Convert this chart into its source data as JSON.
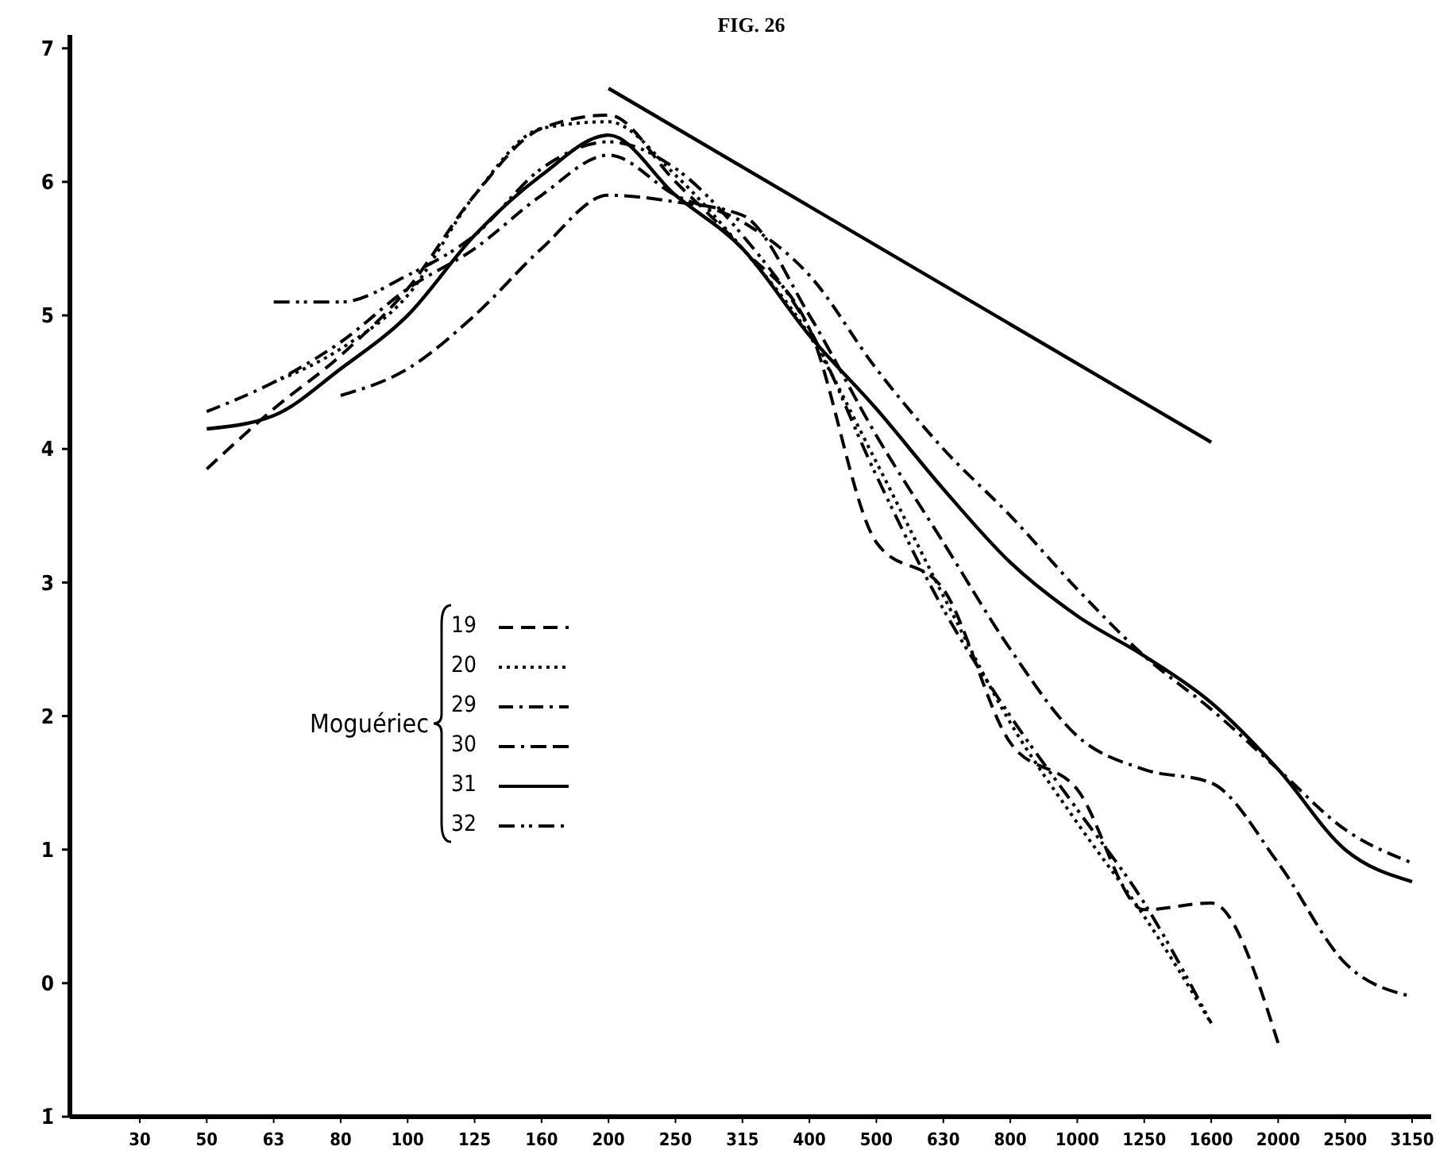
{
  "chart_data": {
    "type": "line",
    "title": "FIG. 26",
    "legend_title": "Moguériec",
    "legend": "left",
    "grid": false,
    "categories": [
      "30",
      "50",
      "63",
      "80",
      "100",
      "125",
      "160",
      "200",
      "250",
      "315",
      "400",
      "500",
      "630",
      "800",
      "1000",
      "1250",
      "1600",
      "2000",
      "2500",
      "3150"
    ],
    "ylim": [
      -1,
      7.1
    ],
    "yticks": [
      {
        "value": -1,
        "label": "1̄"
      },
      0,
      1,
      2,
      3,
      4,
      5,
      6,
      7
    ],
    "series": [
      {
        "name": "19",
        "color": "#000000",
        "line_style": "dashed",
        "values": [
          null,
          3.85,
          4.3,
          4.7,
          5.2,
          5.9,
          6.4,
          6.5,
          6.0,
          5.5,
          4.9,
          3.3,
          2.95,
          1.8,
          1.45,
          0.55,
          0.6,
          -0.45,
          null,
          null
        ]
      },
      {
        "name": "20",
        "color": "#000000",
        "line_style": "dotted",
        "values": [
          null,
          null,
          4.5,
          4.75,
          5.15,
          5.9,
          6.4,
          6.45,
          6.05,
          5.5,
          4.85,
          3.9,
          2.9,
          1.95,
          1.2,
          0.5,
          -0.3,
          null,
          null,
          null
        ]
      },
      {
        "name": "29",
        "color": "#000000",
        "line_style": "dashdot",
        "values": [
          null,
          4.28,
          4.5,
          4.8,
          5.2,
          5.5,
          5.9,
          6.2,
          5.9,
          5.7,
          5.3,
          4.6,
          4.0,
          3.5,
          2.95,
          2.45,
          2.05,
          1.6,
          1.15,
          0.9
        ]
      },
      {
        "name": "30",
        "color": "#000000",
        "line_style": "dashdotdash",
        "values": [
          null,
          null,
          null,
          4.4,
          4.6,
          5.0,
          5.5,
          5.9,
          5.85,
          5.75,
          5.0,
          4.1,
          3.3,
          2.5,
          1.85,
          1.6,
          1.5,
          0.9,
          0.15,
          -0.1
        ]
      },
      {
        "name": "31",
        "color": "#000000",
        "line_style": "solid",
        "values": [
          null,
          4.15,
          4.25,
          4.6,
          5.0,
          5.6,
          6.05,
          6.35,
          5.9,
          5.5,
          4.85,
          4.3,
          3.7,
          3.15,
          2.75,
          2.45,
          2.1,
          1.6,
          1.0,
          0.76
        ]
      },
      {
        "name": "32",
        "color": "#000000",
        "line_style": "dashdotdot",
        "values": [
          null,
          null,
          5.1,
          5.1,
          5.3,
          5.6,
          6.1,
          6.3,
          6.1,
          5.6,
          4.9,
          3.8,
          2.8,
          2.0,
          1.3,
          0.6,
          -0.3,
          null,
          null,
          null
        ]
      },
      {
        "color": "#000000",
        "line_style": "solid",
        "values": [
          null,
          null,
          null,
          null,
          null,
          null,
          null,
          6.7,
          null,
          null,
          null,
          null,
          null,
          null,
          null,
          null,
          4.05,
          null,
          null,
          null
        ]
      }
    ]
  }
}
